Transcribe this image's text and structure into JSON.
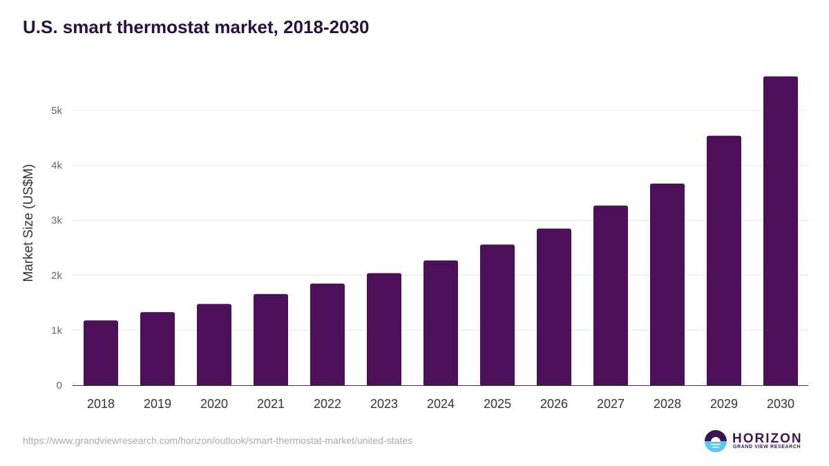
{
  "chart_data": {
    "type": "bar",
    "title": "U.S. smart thermostat market, 2018-2030",
    "xlabel": "",
    "ylabel": "Market Size (US$M)",
    "categories": [
      "2018",
      "2019",
      "2020",
      "2021",
      "2022",
      "2023",
      "2024",
      "2025",
      "2026",
      "2027",
      "2028",
      "2029",
      "2030"
    ],
    "values": [
      1180,
      1330,
      1480,
      1660,
      1850,
      2040,
      2270,
      2560,
      2850,
      3270,
      3670,
      4540,
      5620
    ],
    "ylim": [
      0,
      5600
    ],
    "yticks": [
      0,
      1000,
      2000,
      3000,
      4000,
      5000
    ],
    "ytick_labels": [
      "0",
      "1k",
      "2k",
      "3k",
      "4k",
      "5k"
    ],
    "grid": true,
    "bar_color": "#4b1058"
  },
  "source_url": "https://www.grandviewresearch.com/horizon/outlook/smart-thermostat-market/united-states",
  "logo": {
    "name": "HORIZON",
    "subtitle": "GRAND VIEW RESEARCH"
  }
}
